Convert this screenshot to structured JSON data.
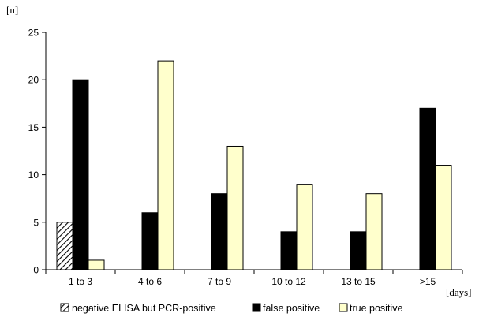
{
  "chart_data": {
    "type": "bar",
    "ylabel": "[n]",
    "xlabel": "[days]",
    "ylim": [
      0,
      25
    ],
    "yticks": [
      0,
      5,
      10,
      15,
      20,
      25
    ],
    "categories": [
      "1 to 3",
      "4 to 6",
      "7 to 9",
      "10 to 12",
      "13 to 15",
      ">15"
    ],
    "series": [
      {
        "name": "negative ELISA but PCR-positive",
        "values": [
          5,
          0,
          0,
          0,
          0,
          0
        ],
        "fill": "hatched"
      },
      {
        "name": "false positive",
        "values": [
          20,
          6,
          8,
          4,
          4,
          17
        ],
        "color": "#000000"
      },
      {
        "name": "true positive",
        "values": [
          1,
          22,
          13,
          9,
          8,
          11
        ],
        "color": "#ffffcc"
      }
    ],
    "grid": false,
    "legend_position": "bottom"
  }
}
